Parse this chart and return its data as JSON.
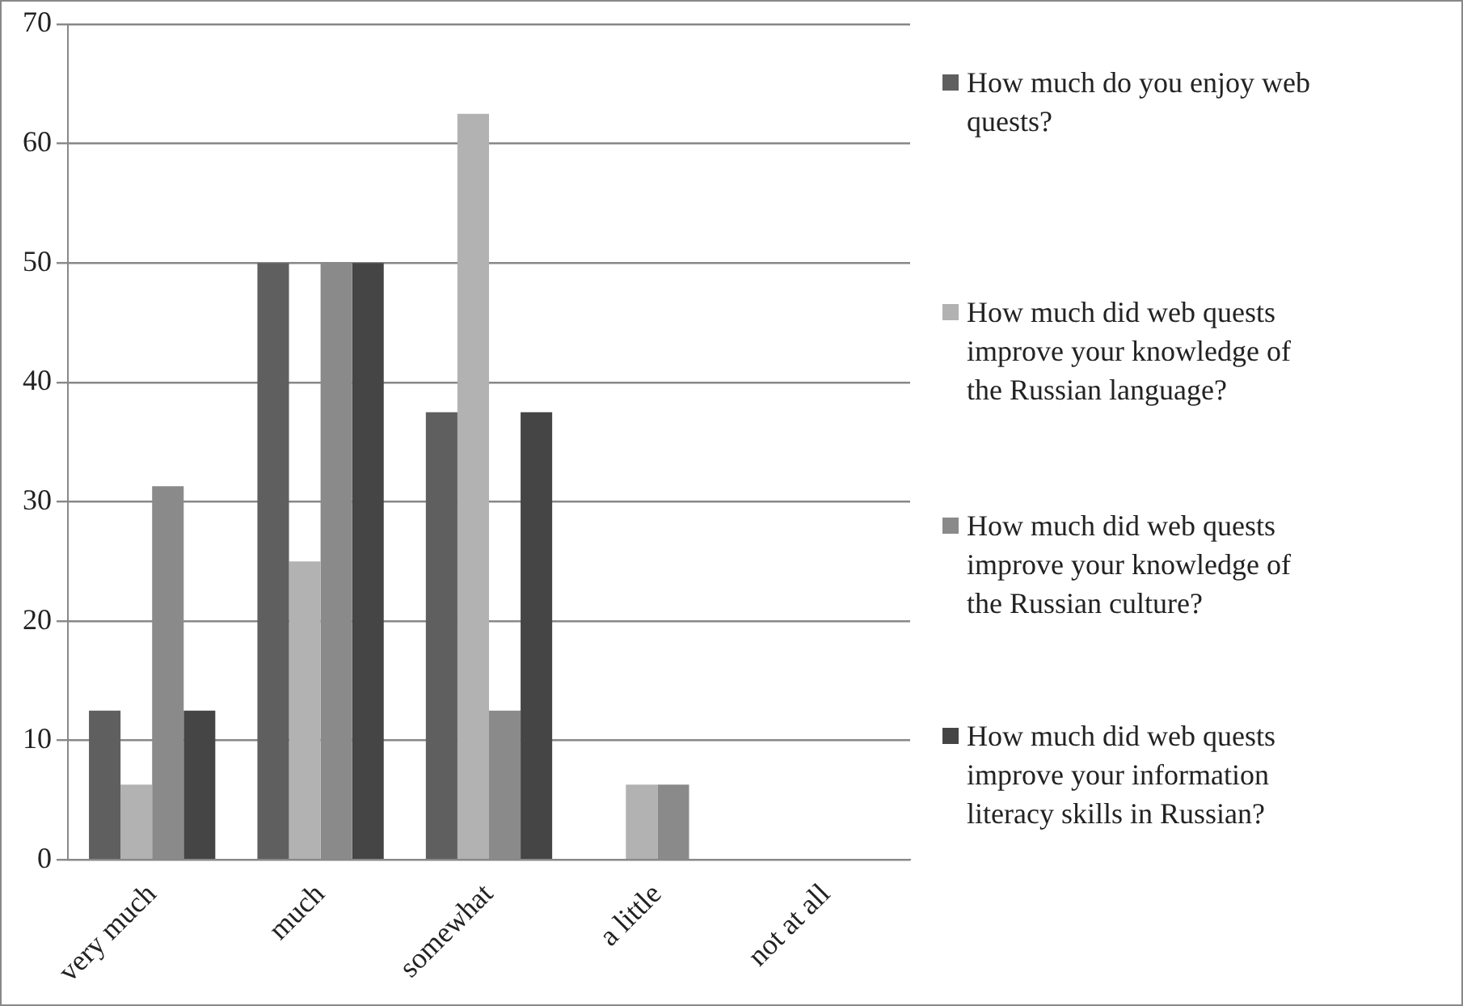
{
  "chart_data": {
    "type": "bar",
    "categories": [
      "very much",
      "much",
      "somewhat",
      "a little",
      "not at all"
    ],
    "series": [
      {
        "name": "How much do you enjoy web quests?",
        "color": "#5f5f5f",
        "values": [
          12.5,
          50,
          37.5,
          0,
          0
        ]
      },
      {
        "name": "How much did web quests improve your knowledge of the Russian language?",
        "color": "#b2b2b2",
        "values": [
          6.3,
          25,
          62.5,
          6.3,
          0
        ]
      },
      {
        "name": "How much did web quests improve your knowledge of the Russian culture?",
        "color": "#8a8a8a",
        "values": [
          31.3,
          50,
          12.5,
          6.3,
          0
        ]
      },
      {
        "name": "How much did web quests improve your information literacy skills in Russian?",
        "color": "#454545",
        "values": [
          12.5,
          50,
          37.5,
          0,
          0
        ]
      }
    ],
    "ylim": [
      0,
      70
    ],
    "yticks": [
      0,
      10,
      20,
      30,
      40,
      50,
      60,
      70
    ],
    "grid": "y",
    "legend": "right"
  }
}
